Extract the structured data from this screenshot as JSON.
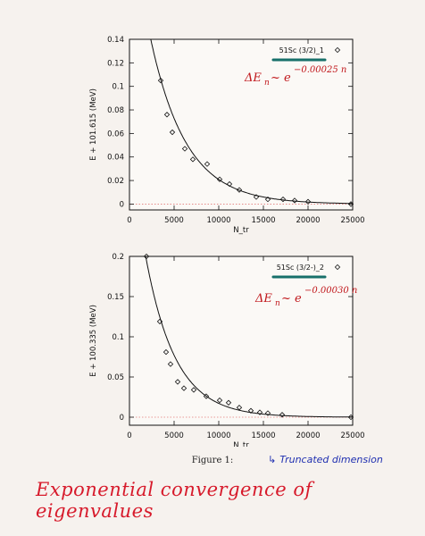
{
  "chart_data": [
    {
      "type": "scatter",
      "ylabel": "E + 101.615 (MeV)",
      "xlabel": "N_tr",
      "xlim": [
        0,
        25000
      ],
      "ylim": [
        -0.005,
        0.14
      ],
      "xticks": [
        0,
        5000,
        10000,
        15000,
        20000,
        25000
      ],
      "yticks": [
        0,
        0.02,
        0.04,
        0.06,
        0.08,
        0.1,
        0.12,
        0.14
      ],
      "series": [
        {
          "name": "51Sc (3/2)_1",
          "x": [
            3500,
            4200,
            4800,
            6200,
            7100,
            8700,
            10100,
            11200,
            12300,
            14200,
            15500,
            17200,
            18500,
            20000,
            24800
          ],
          "y": [
            0.105,
            0.076,
            0.061,
            0.047,
            0.038,
            0.034,
            0.021,
            0.017,
            0.012,
            0.006,
            0.004,
            0.004,
            0.003,
            0.002,
            0.0
          ]
        }
      ],
      "fit_curve": {
        "form": "exponential",
        "a": 0.254,
        "k": 0.00025
      },
      "annotation": {
        "prefix": "ΔE",
        "sub": "n",
        "mid": " ~ e",
        "exponent": "−0.00025 n"
      },
      "grid": false,
      "legend_position": "top-right"
    },
    {
      "type": "scatter",
      "ylabel": "E + 100.335 (MeV)",
      "xlabel": "N_tr",
      "xlim": [
        0,
        25000
      ],
      "ylim": [
        -0.01,
        0.2
      ],
      "xticks": [
        0,
        5000,
        10000,
        15000,
        20000,
        25000
      ],
      "yticks": [
        0,
        0.05,
        0.1,
        0.15,
        0.2
      ],
      "series": [
        {
          "name": "51Sc (3/2-)_2",
          "x": [
            1900,
            3400,
            4100,
            4600,
            5400,
            6100,
            7200,
            8600,
            10100,
            11100,
            12300,
            13600,
            14600,
            15500,
            17100,
            24800
          ],
          "y": [
            0.2,
            0.119,
            0.081,
            0.066,
            0.044,
            0.036,
            0.034,
            0.026,
            0.021,
            0.018,
            0.012,
            0.008,
            0.006,
            0.005,
            0.003,
            0.0
          ]
        }
      ],
      "fit_curve": {
        "form": "exponential",
        "a": 0.345,
        "k": 0.0003
      },
      "annotation": {
        "prefix": "ΔE",
        "sub": "n",
        "mid": " ~ e",
        "exponent": "−0.00030 n"
      },
      "grid": false,
      "legend_position": "top-right"
    }
  ],
  "figure_caption": "Figure 1:",
  "handwritten": {
    "arrow": "↳",
    "note": "Truncated dimension",
    "title": "Exponential convergence of eigenvalues"
  },
  "colors": {
    "legend_line": "#17706a",
    "handwriting_red": "#c0171b",
    "handwriting_blue": "#1f2fb0",
    "title_red": "#d71a2b",
    "zero_line": "#e27a7a"
  }
}
